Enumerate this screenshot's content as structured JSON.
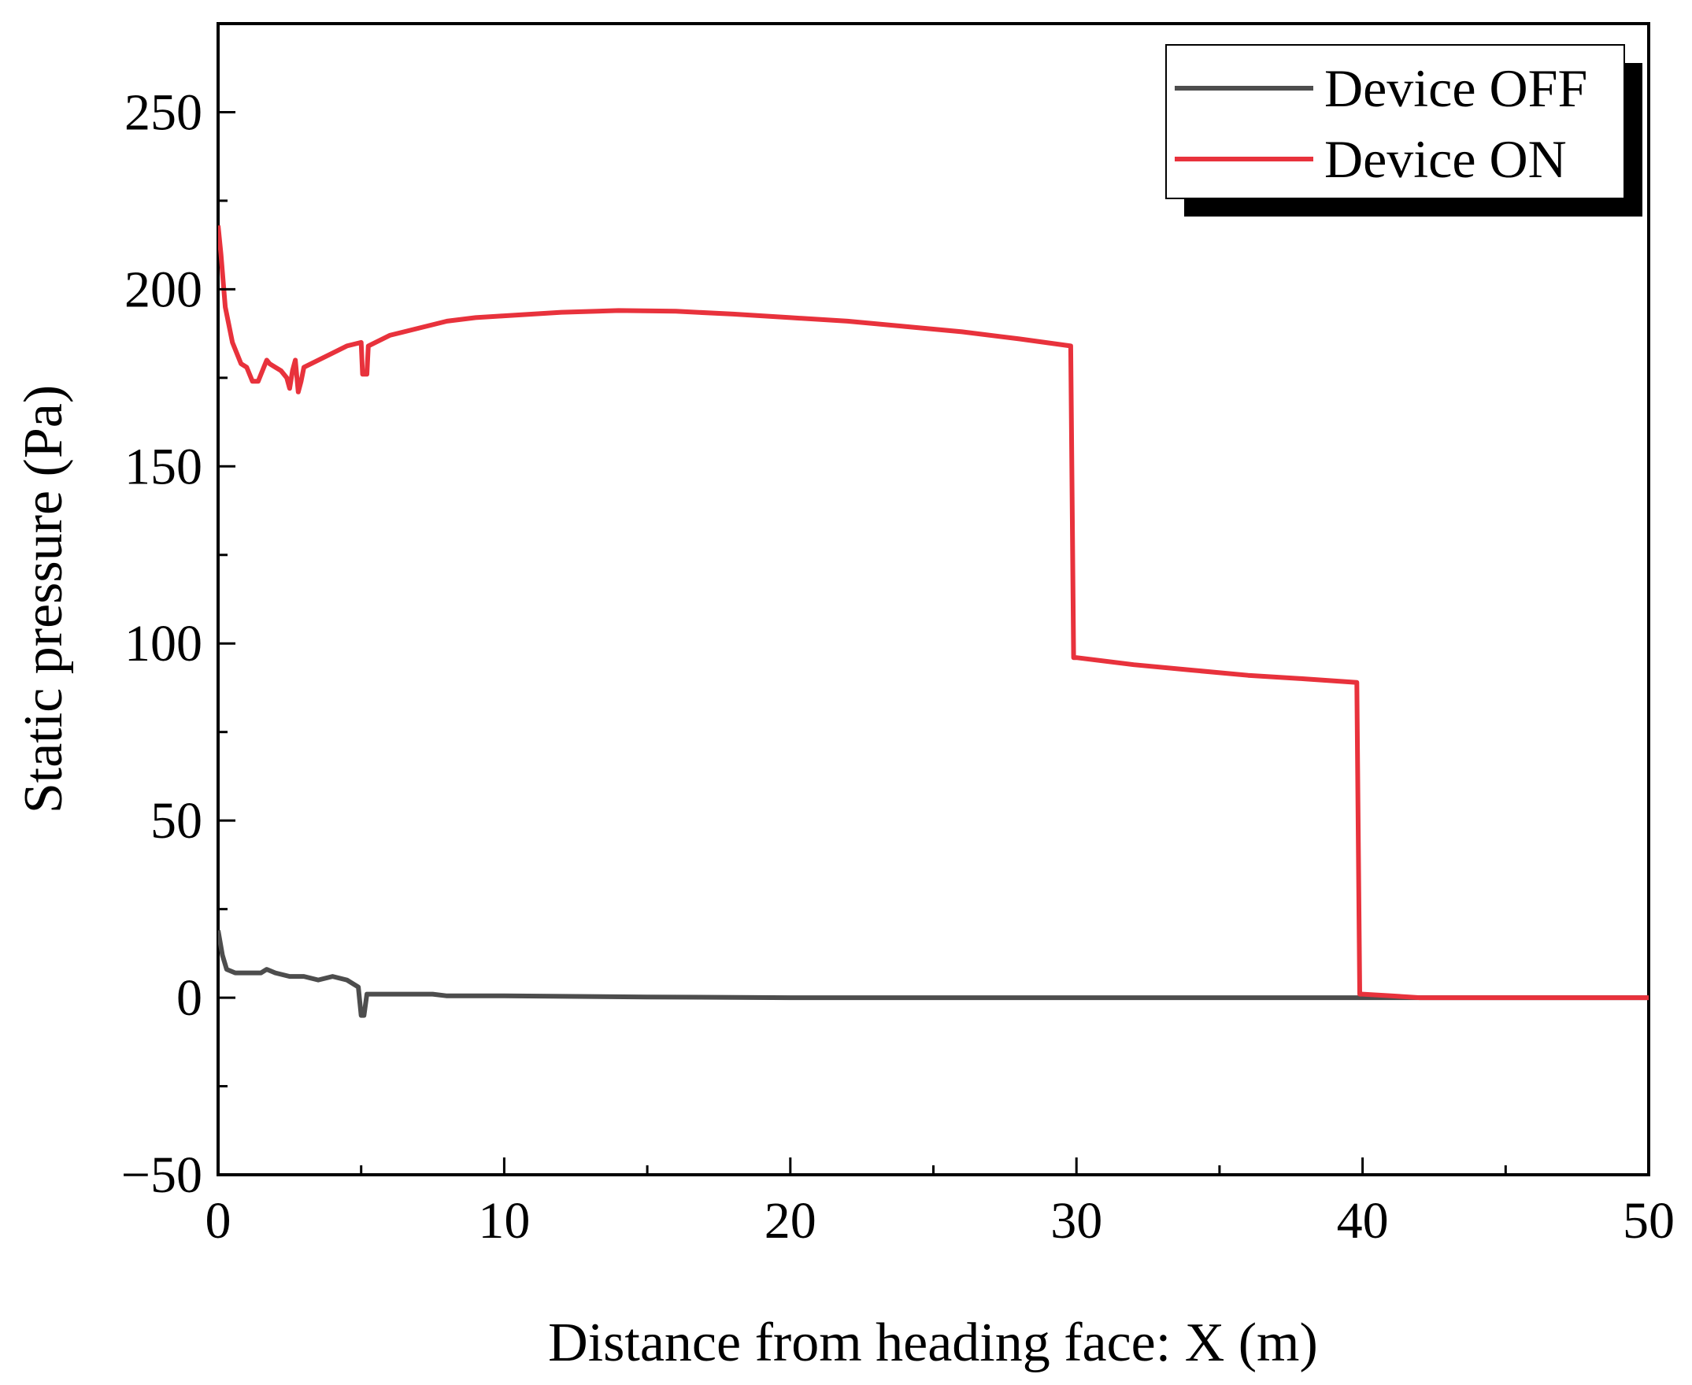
{
  "chart_data": {
    "type": "line",
    "title": "",
    "xlabel": "Distance from heading face: X (m)",
    "ylabel": "Static pressure (Pa)",
    "xlim": [
      0,
      50
    ],
    "ylim": [
      -50,
      275
    ],
    "x_ticks": [
      0,
      10,
      20,
      30,
      40,
      50
    ],
    "y_ticks": [
      -50,
      0,
      50,
      100,
      150,
      200,
      250
    ],
    "x_tick_labels": [
      "0",
      "10",
      "20",
      "30",
      "40",
      "50"
    ],
    "y_tick_labels": [
      "−50",
      "0",
      "50",
      "100",
      "150",
      "200",
      "250"
    ],
    "grid": false,
    "legend_position": "top-right",
    "series": [
      {
        "name": "Device OFF",
        "color": "#4d4d4d",
        "points": [
          [
            0,
            19
          ],
          [
            0.15,
            12
          ],
          [
            0.3,
            8
          ],
          [
            0.6,
            7
          ],
          [
            1,
            7
          ],
          [
            1.5,
            7
          ],
          [
            1.7,
            8
          ],
          [
            2,
            7
          ],
          [
            2.5,
            6
          ],
          [
            3,
            6
          ],
          [
            3.5,
            5
          ],
          [
            4,
            6
          ],
          [
            4.5,
            5
          ],
          [
            4.9,
            3
          ],
          [
            5,
            -5
          ],
          [
            5.1,
            -5
          ],
          [
            5.2,
            1
          ],
          [
            5.5,
            1
          ],
          [
            6,
            1
          ],
          [
            7,
            1
          ],
          [
            7.5,
            1
          ],
          [
            8,
            0.5
          ],
          [
            10,
            0.5
          ],
          [
            15,
            0.2
          ],
          [
            20,
            0
          ],
          [
            30,
            0
          ],
          [
            40,
            0
          ],
          [
            50,
            0
          ]
        ]
      },
      {
        "name": "Device ON",
        "color": "#e8323c",
        "points": [
          [
            0,
            218
          ],
          [
            0.1,
            210
          ],
          [
            0.25,
            195
          ],
          [
            0.5,
            185
          ],
          [
            0.8,
            179
          ],
          [
            1,
            178
          ],
          [
            1.2,
            174
          ],
          [
            1.4,
            174
          ],
          [
            1.6,
            178
          ],
          [
            1.7,
            180
          ],
          [
            1.8,
            179
          ],
          [
            2,
            178
          ],
          [
            2.2,
            177
          ],
          [
            2.4,
            175
          ],
          [
            2.5,
            172
          ],
          [
            2.6,
            177
          ],
          [
            2.7,
            180
          ],
          [
            2.8,
            171
          ],
          [
            2.9,
            174
          ],
          [
            3,
            178
          ],
          [
            3.5,
            180
          ],
          [
            4,
            182
          ],
          [
            4.5,
            184
          ],
          [
            5,
            185
          ],
          [
            5.05,
            176
          ],
          [
            5.2,
            176
          ],
          [
            5.25,
            184
          ],
          [
            6,
            187
          ],
          [
            7,
            189
          ],
          [
            8,
            191
          ],
          [
            9,
            192
          ],
          [
            10,
            192.5
          ],
          [
            12,
            193.5
          ],
          [
            14,
            194
          ],
          [
            16,
            193.8
          ],
          [
            18,
            193
          ],
          [
            20,
            192
          ],
          [
            22,
            191
          ],
          [
            24,
            189.5
          ],
          [
            26,
            188
          ],
          [
            28,
            186
          ],
          [
            29.8,
            184
          ],
          [
            29.9,
            96
          ],
          [
            30,
            96
          ],
          [
            32,
            94
          ],
          [
            34,
            92.5
          ],
          [
            36,
            91
          ],
          [
            38,
            90
          ],
          [
            39.8,
            89
          ],
          [
            39.9,
            1
          ],
          [
            40,
            1
          ],
          [
            41,
            0.5
          ],
          [
            42,
            0
          ],
          [
            45,
            0
          ],
          [
            50,
            0
          ]
        ]
      }
    ]
  }
}
